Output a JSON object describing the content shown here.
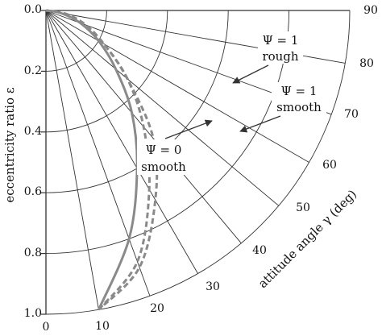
{
  "chart_data": {
    "type": "line",
    "coordinate_system": "polar",
    "xlabel": "attitude angle γ (deg)",
    "ylabel": "eccentricity ratio ε",
    "r_range": [
      0.0,
      1.0
    ],
    "angle_range_deg": [
      0,
      90
    ],
    "r_ticks": [
      "0.0",
      "0.2",
      "0.4",
      "0.6",
      "0.8",
      "1.0"
    ],
    "r_tick_values": [
      0.0,
      0.2,
      0.4,
      0.6,
      0.8,
      1.0
    ],
    "angle_ticks": [
      "10",
      "20",
      "30",
      "40",
      "50",
      "60",
      "70",
      "80",
      "90"
    ],
    "angle_tick_values": [
      10,
      20,
      30,
      40,
      50,
      60,
      70,
      80,
      90
    ],
    "origin_label": "0",
    "grid": true,
    "colors": {
      "series": "#8a8a8a",
      "grid": "#333333",
      "text": "#111111"
    },
    "series": [
      {
        "name": "Ψ = 1 rough",
        "style": "solid",
        "points": [
          {
            "gamma": 90,
            "epsilon": 0.0
          },
          {
            "gamma": 80,
            "epsilon": 0.05
          },
          {
            "gamma": 70,
            "epsilon": 0.12
          },
          {
            "gamma": 60,
            "epsilon": 0.2
          },
          {
            "gamma": 50,
            "epsilon": 0.3
          },
          {
            "gamma": 40,
            "epsilon": 0.44
          },
          {
            "gamma": 30,
            "epsilon": 0.6
          },
          {
            "gamma": 20,
            "epsilon": 0.8
          },
          {
            "gamma": 10,
            "epsilon": 1.0
          }
        ]
      },
      {
        "name": "Ψ = 1 smooth",
        "style": "dashed",
        "points": [
          {
            "gamma": 90,
            "epsilon": 0.0
          },
          {
            "gamma": 80,
            "epsilon": 0.06
          },
          {
            "gamma": 70,
            "epsilon": 0.13
          },
          {
            "gamma": 60,
            "epsilon": 0.22
          },
          {
            "gamma": 50,
            "epsilon": 0.35
          },
          {
            "gamma": 40,
            "epsilon": 0.5
          },
          {
            "gamma": 30,
            "epsilon": 0.68
          },
          {
            "gamma": 20,
            "epsilon": 0.88
          },
          {
            "gamma": 10,
            "epsilon": 1.0
          }
        ]
      },
      {
        "name": "Ψ = 0 smooth",
        "style": "dashed",
        "points": [
          {
            "gamma": 90,
            "epsilon": 0.0
          },
          {
            "gamma": 80,
            "epsilon": 0.07
          },
          {
            "gamma": 70,
            "epsilon": 0.14
          },
          {
            "gamma": 60,
            "epsilon": 0.22
          },
          {
            "gamma": 50,
            "epsilon": 0.35
          },
          {
            "gamma": 40,
            "epsilon": 0.55
          },
          {
            "gamma": 30,
            "epsilon": 0.72
          },
          {
            "gamma": 20,
            "epsilon": 0.9
          },
          {
            "gamma": 10,
            "epsilon": 1.0
          }
        ]
      }
    ],
    "annotations": [
      {
        "line1": "Ψ = 1",
        "line2": "rough"
      },
      {
        "line1": "Ψ = 1",
        "line2": "smooth"
      },
      {
        "line1": "Ψ = 0",
        "line2": "smooth"
      }
    ]
  }
}
